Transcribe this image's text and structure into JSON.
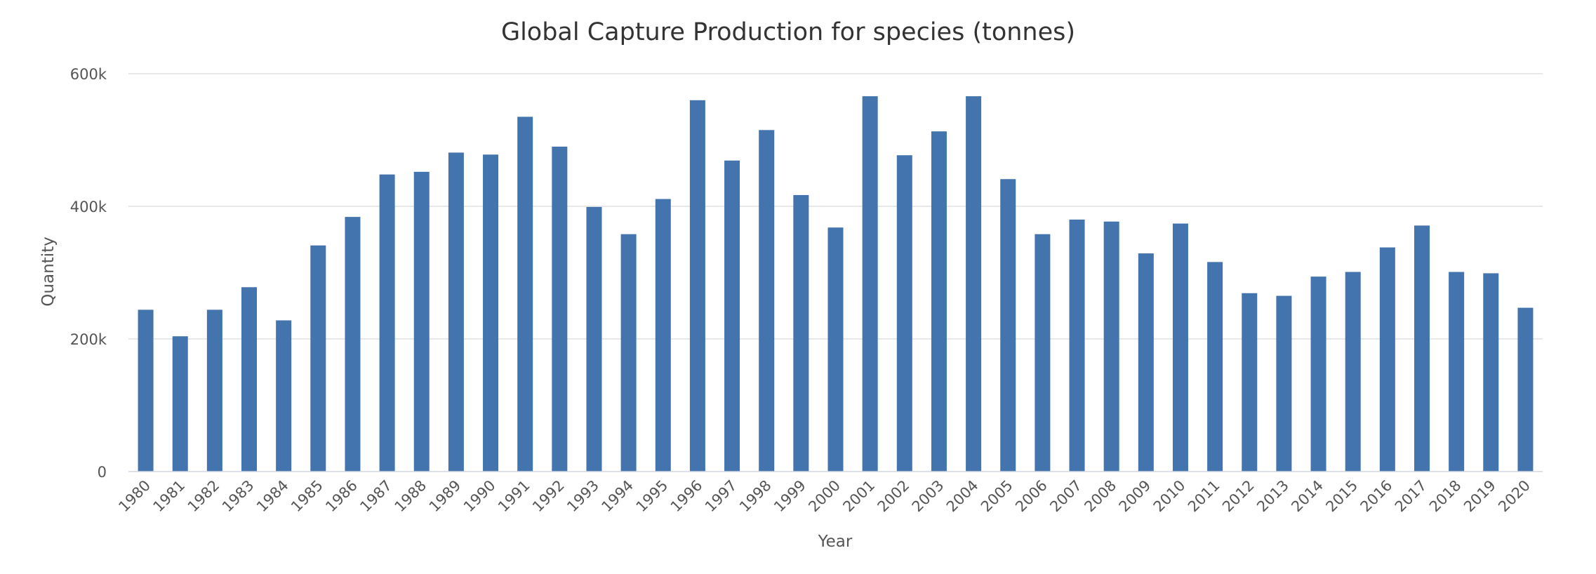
{
  "chart_data": {
    "type": "bar",
    "title": "Global Capture Production for species (tonnes)",
    "xlabel": "Year",
    "ylabel": "Quantity",
    "ylim": [
      0,
      600000
    ],
    "y_ticks": [
      0,
      200000,
      400000,
      600000
    ],
    "y_tick_labels": [
      "0",
      "200k",
      "400k",
      "600k"
    ],
    "grid": true,
    "legend": "none",
    "bar_color": "#4374ad",
    "categories": [
      "1980",
      "1981",
      "1982",
      "1983",
      "1984",
      "1985",
      "1986",
      "1987",
      "1988",
      "1989",
      "1990",
      "1991",
      "1992",
      "1993",
      "1994",
      "1995",
      "1996",
      "1997",
      "1998",
      "1999",
      "2000",
      "2001",
      "2002",
      "2003",
      "2004",
      "2005",
      "2006",
      "2007",
      "2008",
      "2009",
      "2010",
      "2011",
      "2012",
      "2013",
      "2014",
      "2015",
      "2016",
      "2017",
      "2018",
      "2019",
      "2020"
    ],
    "values": [
      244000,
      204000,
      244000,
      278000,
      228000,
      341000,
      384000,
      448000,
      452000,
      481000,
      478000,
      535000,
      490000,
      399000,
      358000,
      411000,
      560000,
      469000,
      515000,
      417000,
      368000,
      566000,
      477000,
      513000,
      566000,
      441000,
      358000,
      380000,
      377000,
      329000,
      374000,
      316000,
      269000,
      265000,
      294000,
      301000,
      338000,
      371000,
      301000,
      299000,
      247000
    ]
  }
}
